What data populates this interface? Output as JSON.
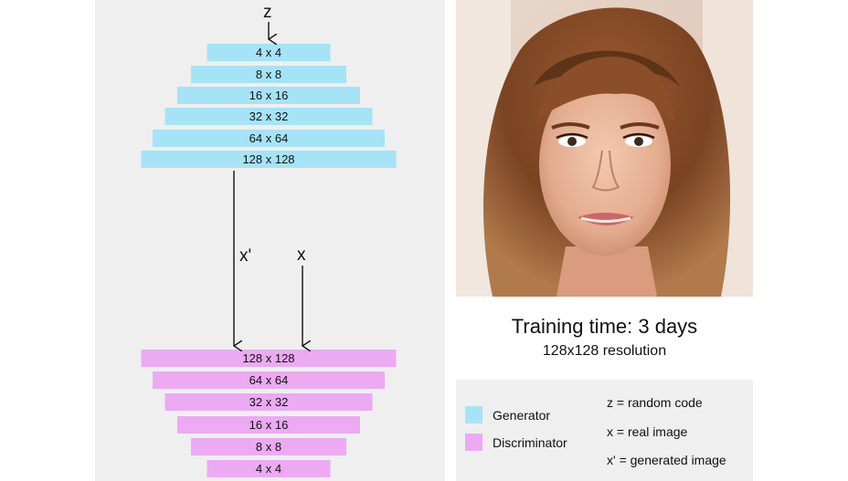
{
  "diagram": {
    "input_symbol": "z",
    "fake_symbol": "x'",
    "real_symbol": "x",
    "generator_layers": [
      "4 x 4",
      "8 x 8",
      "16 x 16",
      "32 x 32",
      "64 x 64",
      "128 x 128"
    ],
    "discriminator_layers": [
      "128 x 128",
      "64 x 64",
      "32 x 32",
      "16 x 16",
      "8 x 8",
      "4 x 4"
    ]
  },
  "training": {
    "title": "Training time: 3 days",
    "subtitle": "128x128 resolution"
  },
  "legend": {
    "generator_label": "Generator",
    "discriminator_label": "Discriminator",
    "z_definition": "z = random code",
    "x_definition": "x = real image",
    "xprime_definition": "x' = generated image"
  },
  "colors": {
    "generator": "#a6e3f7",
    "discriminator": "#ebaaf2",
    "panel_bg": "#efefef"
  }
}
